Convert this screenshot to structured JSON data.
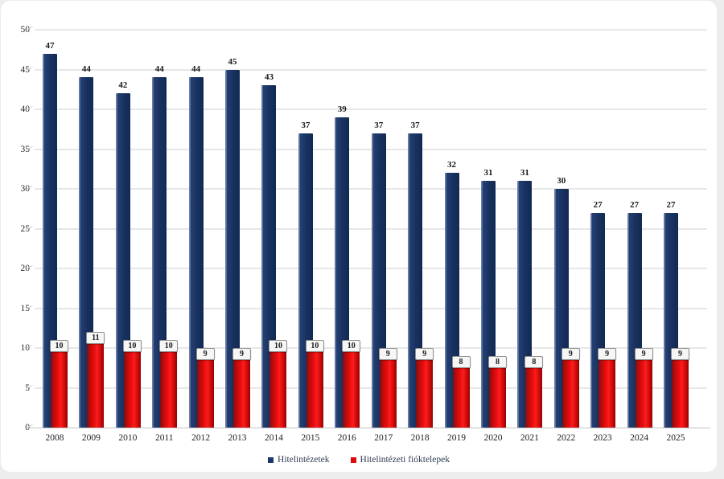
{
  "chart_data": {
    "type": "bar",
    "categories": [
      "2008",
      "2009",
      "2010",
      "2011",
      "2012",
      "2013",
      "2014",
      "2015",
      "2016",
      "2017",
      "2018",
      "2019",
      "2020",
      "2021",
      "2022",
      "2023",
      "2024",
      "2025"
    ],
    "series": [
      {
        "name": "Hitelintézetek",
        "color": "#1b3768",
        "values": [
          47,
          44,
          42,
          44,
          44,
          45,
          43,
          37,
          39,
          37,
          37,
          32,
          31,
          31,
          30,
          27,
          27,
          27
        ]
      },
      {
        "name": "Hitelintézeti fióktelepek",
        "color": "#de0a0a",
        "values": [
          10,
          11,
          10,
          10,
          9,
          9,
          10,
          10,
          10,
          9,
          9,
          8,
          8,
          8,
          9,
          9,
          9,
          9
        ]
      }
    ],
    "title": "",
    "xlabel": "",
    "ylabel": "",
    "ylim": [
      0,
      50
    ],
    "yticks": [
      0,
      5,
      10,
      15,
      20,
      25,
      30,
      35,
      40,
      45,
      50
    ],
    "grid": true,
    "legend_position": "bottom",
    "colors": {
      "grid": "#e7e7e7",
      "axis": "#c2c2c2",
      "tick_text": "#2b2b2b",
      "bar_label_text": "#15151c",
      "red_label_box_bg": "#f6f6f4",
      "red_label_box_border": "#8f8f8f",
      "background": "#ffffff",
      "page_edge": "#ededed"
    }
  }
}
